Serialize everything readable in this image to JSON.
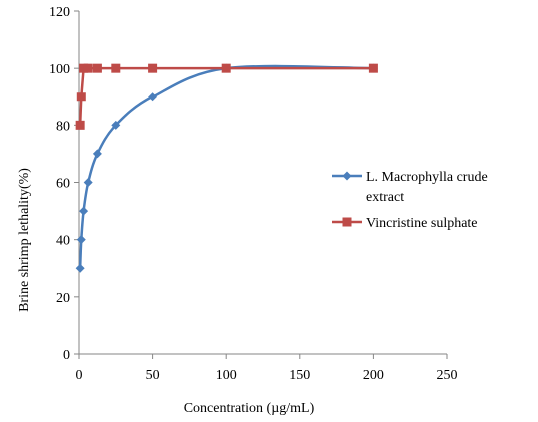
{
  "chart_data": {
    "type": "line",
    "title": "",
    "xlabel": "Concentration (µg/mL)",
    "ylabel": "Brine shrimp lethality(%)",
    "xlim": [
      0,
      250
    ],
    "ylim": [
      0,
      120
    ],
    "xticks": [
      0,
      50,
      100,
      150,
      200,
      250
    ],
    "yticks": [
      0,
      20,
      40,
      60,
      80,
      100,
      120
    ],
    "grid": false,
    "legend_position": "right",
    "series": [
      {
        "name_lines": [
          "L. Macrophylla crude",
          "extract"
        ],
        "color": "#4a7ebb",
        "marker": "diamond",
        "smooth": true,
        "x": [
          0.78,
          1.56,
          3.125,
          6.25,
          12.5,
          25,
          50,
          100,
          200
        ],
        "y": [
          30,
          40,
          50,
          60,
          70,
          80,
          90,
          100,
          100
        ]
      },
      {
        "name_lines": [
          "Vincristine sulphate"
        ],
        "color": "#be4b48",
        "marker": "square",
        "smooth": false,
        "x": [
          0.78,
          1.56,
          3.125,
          6.25,
          12.5,
          25,
          50,
          100,
          200
        ],
        "y": [
          80,
          90,
          100,
          100,
          100,
          100,
          100,
          100,
          100
        ]
      }
    ]
  }
}
